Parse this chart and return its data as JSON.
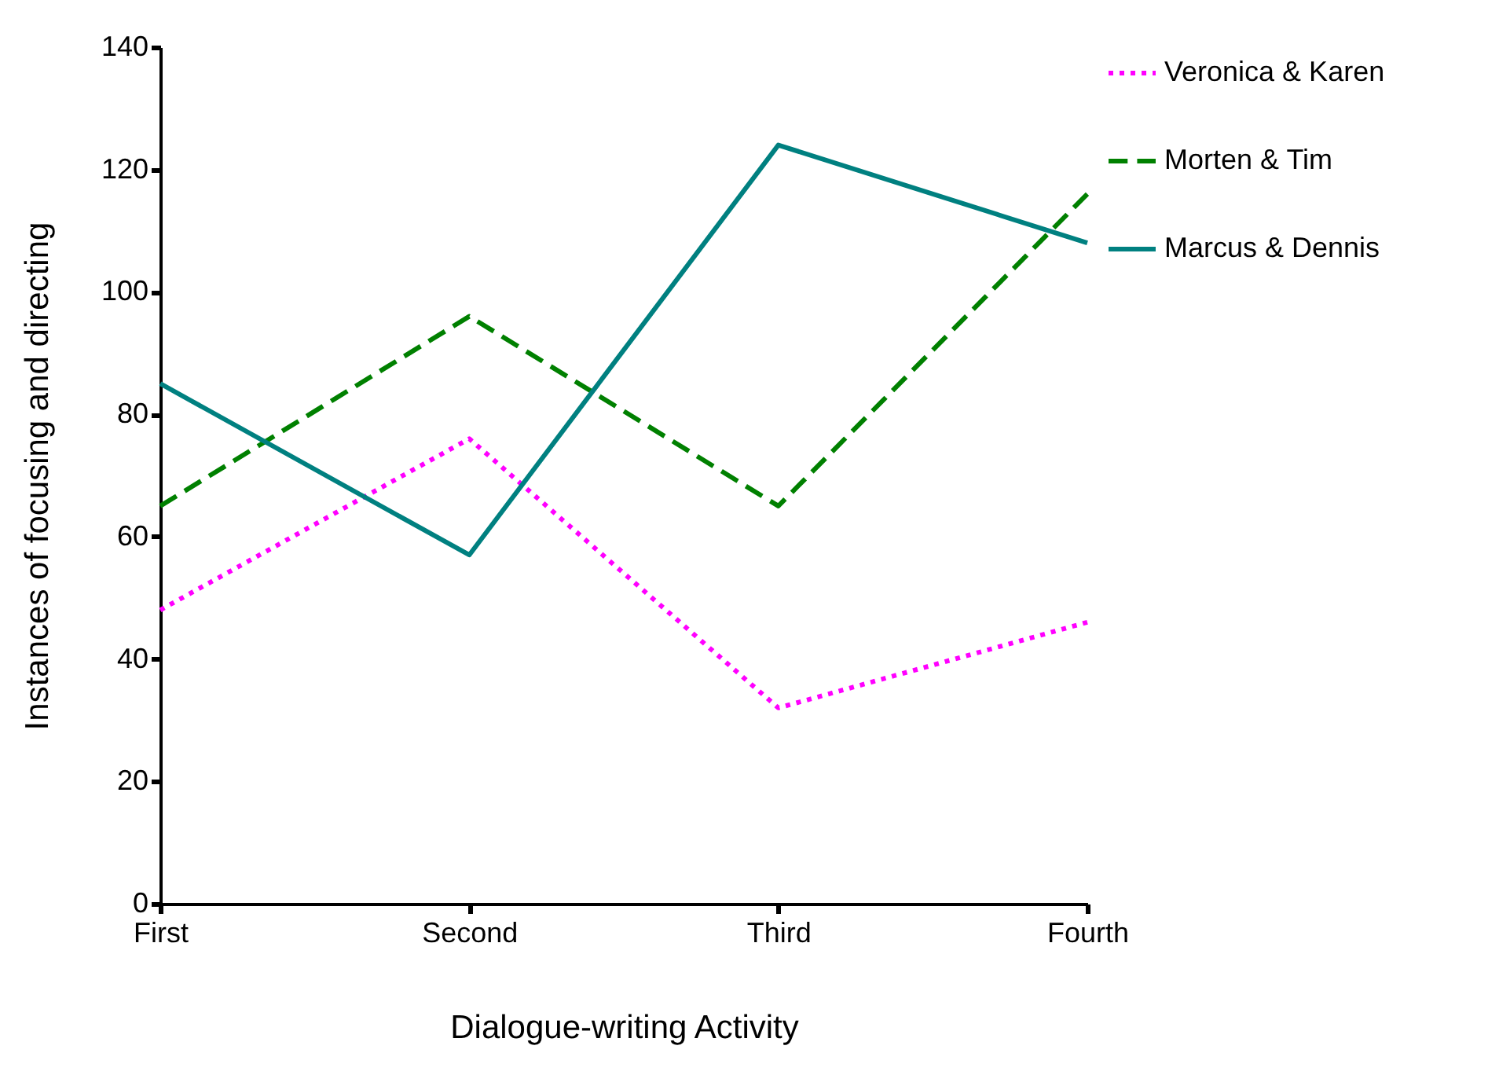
{
  "chart_data": {
    "type": "line",
    "xlabel": "Dialogue-writing Activity",
    "ylabel": "Instances of focusing and directing",
    "categories": [
      "First",
      "Second",
      "Third",
      "Fourth"
    ],
    "series": [
      {
        "name": "Veronica & Karen",
        "color": "#ff00ff",
        "line_style": "dotted",
        "values": [
          48,
          76,
          32,
          46
        ]
      },
      {
        "name": "Morten & Tim",
        "color": "#008000",
        "line_style": "dashed",
        "values": [
          65,
          96,
          65,
          116
        ]
      },
      {
        "name": "Marcus & Dennis",
        "color": "#008080",
        "line_style": "solid",
        "values": [
          85,
          57,
          124,
          108
        ]
      }
    ],
    "ylim": [
      0,
      140
    ],
    "yticks": [
      0,
      20,
      40,
      60,
      80,
      100,
      120,
      140
    ],
    "grid": false,
    "legend": "right",
    "marker": "none"
  }
}
